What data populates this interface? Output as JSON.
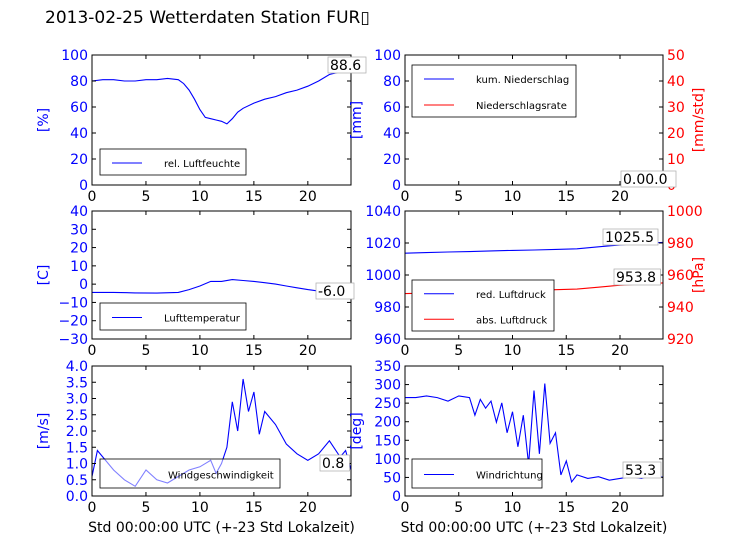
{
  "title": "2013-02-25 Wetterdaten Station FUR▯",
  "colors": {
    "primary": "#0000ff",
    "secondary": "#ff0000",
    "axis": "#000000"
  },
  "chart_data": [
    {
      "type": "line",
      "ylabel": "[%]",
      "xlim": [
        0,
        24
      ],
      "ylim": [
        0,
        100
      ],
      "xticks": [
        "0",
        "5",
        "10",
        "15",
        "20"
      ],
      "yticks": [
        "0",
        "20",
        "40",
        "60",
        "80",
        "100"
      ],
      "legend": [
        "rel. Luftfeuchte"
      ],
      "legend_position": "lower-left",
      "annotation": "88.6",
      "series": [
        {
          "name": "rel. Luftfeuchte",
          "color": "#0000ff",
          "x": [
            0,
            1,
            2,
            3,
            4,
            5,
            6,
            7,
            8,
            8.5,
            9,
            9.5,
            10,
            10.5,
            11,
            11.5,
            12,
            12.5,
            13,
            13.5,
            14,
            15,
            16,
            17,
            18,
            19,
            20,
            21,
            22,
            23,
            24
          ],
          "y": [
            80,
            81,
            81,
            80,
            80,
            81,
            81,
            82,
            81,
            78,
            73,
            66,
            58,
            52,
            51,
            50,
            49,
            47,
            51,
            56,
            59,
            63,
            66,
            68,
            71,
            73,
            76,
            80,
            85,
            87,
            88.6
          ]
        }
      ]
    },
    {
      "type": "line",
      "ylabel": "[mm]",
      "ylabel_right": "[mm/std]",
      "xlim": [
        0,
        24
      ],
      "ylim": [
        0,
        100
      ],
      "ylim_right": [
        0,
        50
      ],
      "xticks": [
        "0",
        "5",
        "10",
        "15",
        "20"
      ],
      "yticks": [
        "0",
        "20",
        "40",
        "60",
        "80",
        "100"
      ],
      "yticks_right": [
        "0",
        "10",
        "20",
        "30",
        "40",
        "50"
      ],
      "legend": [
        "kum. Niederschlag",
        "Niederschlagsrate"
      ],
      "legend_position": "upper-left",
      "annotation": "0.00.0",
      "series": [
        {
          "name": "kum. Niederschlag",
          "color": "#0000ff",
          "x": [
            0,
            24
          ],
          "y": [
            0,
            0
          ]
        },
        {
          "name": "Niederschlagsrate",
          "color": "#ff0000",
          "axis": "right",
          "x": [
            0,
            24
          ],
          "y": [
            0,
            0
          ]
        }
      ]
    },
    {
      "type": "line",
      "ylabel": "[C]",
      "xlim": [
        0,
        24
      ],
      "ylim": [
        -30,
        40
      ],
      "xticks": [
        "0",
        "5",
        "10",
        "15",
        "20"
      ],
      "yticks": [
        "−30",
        "−20",
        "−10",
        "0",
        "10",
        "20",
        "30",
        "40"
      ],
      "legend": [
        "Lufttemperatur"
      ],
      "legend_position": "lower-left",
      "annotation": "-6.0",
      "series": [
        {
          "name": "Lufttemperatur",
          "color": "#0000ff",
          "x": [
            0,
            2,
            4,
            6,
            8,
            9,
            10,
            11,
            12,
            13,
            14,
            15,
            16,
            17,
            18,
            19,
            20,
            21,
            22,
            23,
            24
          ],
          "y": [
            -4.5,
            -4.5,
            -4.8,
            -4.9,
            -4.5,
            -3,
            -1,
            1.5,
            1.5,
            2.5,
            2,
            1.5,
            0.8,
            0,
            -1,
            -2,
            -3,
            -3.8,
            -4.5,
            -5.5,
            -6
          ]
        }
      ]
    },
    {
      "type": "line",
      "ylabel": "",
      "ylabel_right": "[hPa]",
      "xlim": [
        0,
        24
      ],
      "ylim": [
        950,
        1050
      ],
      "ylim_right": [
        910,
        1010
      ],
      "xticks": [
        "0",
        "5",
        "10",
        "15",
        "20"
      ],
      "yticks": [
        "960",
        "980",
        "1000",
        "1020",
        "1040"
      ],
      "yticks_right": [
        "920",
        "940",
        "960",
        "980",
        "1000"
      ],
      "legend": [
        "red. Luftdruck",
        "abs. Luftdruck"
      ],
      "legend_position": "lower-left",
      "annotations": [
        "1025.5",
        "953.8"
      ],
      "series": [
        {
          "name": "red. Luftdruck",
          "color": "#0000ff",
          "x": [
            0,
            2,
            4,
            6,
            8,
            10,
            12,
            14,
            16,
            18,
            20,
            22,
            24
          ],
          "y": [
            1017,
            1017.5,
            1018,
            1018.3,
            1018.8,
            1019.2,
            1019.5,
            1020,
            1020.5,
            1022,
            1023.5,
            1024.8,
            1025.5
          ]
        },
        {
          "name": "abs. Luftdruck",
          "color": "#ff0000",
          "axis": "right",
          "x": [
            0,
            2,
            4,
            6,
            8,
            10,
            12,
            14,
            16,
            18,
            20,
            22,
            24
          ],
          "y": [
            945.5,
            945.8,
            946.2,
            946.5,
            947,
            947.5,
            948,
            948.5,
            949,
            950.5,
            952,
            953,
            953.8
          ]
        }
      ]
    },
    {
      "type": "line",
      "ylabel": "[m/s]",
      "xlabel": "Std 00:00:00 UTC (+-23 Std Lokalzeit)",
      "xlim": [
        0,
        24
      ],
      "ylim": [
        0,
        4
      ],
      "xticks": [
        "0",
        "5",
        "10",
        "15",
        "20"
      ],
      "yticks": [
        "0.0",
        "0.5",
        "1.0",
        "1.5",
        "2.0",
        "2.5",
        "3.0",
        "3.5",
        "4.0"
      ],
      "legend": [
        "Windgeschwindigkeit"
      ],
      "legend_position": "lower-center",
      "annotation": "0.8",
      "series": [
        {
          "name": "Windgeschwindigkeit",
          "color": "#0000ff",
          "x": [
            0,
            0.5,
            1,
            2,
            3,
            4,
            5,
            6,
            7,
            8,
            9,
            10,
            11,
            11.5,
            12,
            12.5,
            13,
            13.5,
            14,
            14.5,
            15,
            15.5,
            16,
            17,
            18,
            19,
            20,
            21,
            22,
            23,
            23.5,
            24
          ],
          "y": [
            0.6,
            1.4,
            1.2,
            0.8,
            0.5,
            0.3,
            0.8,
            0.5,
            0.4,
            0.6,
            0.8,
            0.9,
            1.1,
            0.7,
            1.0,
            1.5,
            2.9,
            2.0,
            3.6,
            2.6,
            3.2,
            1.9,
            2.6,
            2.2,
            1.6,
            1.3,
            1.1,
            1.3,
            1.7,
            1.2,
            1.4,
            0.8
          ]
        }
      ]
    },
    {
      "type": "line",
      "ylabel": "[deg]",
      "xlabel": "Std 00:00:00 UTC (+-23 Std Lokalzeit)",
      "xlim": [
        0,
        24
      ],
      "ylim": [
        0,
        370
      ],
      "xticks": [
        "0",
        "5",
        "10",
        "15",
        "20"
      ],
      "yticks": [
        "0",
        "50",
        "100",
        "150",
        "200",
        "250",
        "300",
        "350"
      ],
      "legend": [
        "Windrichtung"
      ],
      "legend_position": "lower-left",
      "annotation": "53.3",
      "series": [
        {
          "name": "Windrichtung",
          "color": "#0000ff",
          "x": [
            0,
            1,
            2,
            3,
            4,
            5,
            6,
            6.5,
            7,
            7.5,
            8,
            8.5,
            9,
            9.5,
            10,
            10.5,
            11,
            11.5,
            12,
            12.5,
            13,
            13.5,
            14,
            14.5,
            15,
            15.5,
            16,
            17,
            18,
            19,
            20,
            21,
            22,
            23,
            24
          ],
          "y": [
            280,
            280,
            285,
            280,
            270,
            285,
            280,
            230,
            275,
            250,
            270,
            210,
            265,
            180,
            240,
            140,
            230,
            90,
            300,
            120,
            320,
            150,
            180,
            60,
            100,
            40,
            60,
            50,
            55,
            45,
            50,
            55,
            50,
            60,
            53.3
          ]
        }
      ]
    }
  ]
}
